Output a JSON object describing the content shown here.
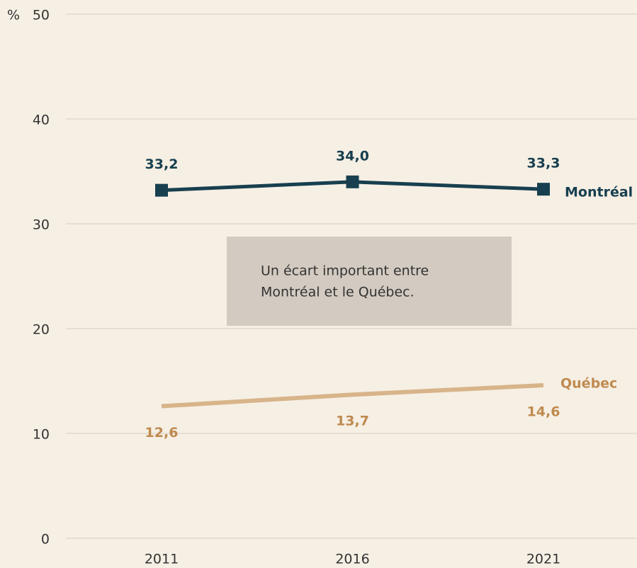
{
  "chart_data": {
    "type": "line",
    "y_unit": "%",
    "categories": [
      "2011",
      "2016",
      "2021"
    ],
    "series": [
      {
        "name": "Montréal",
        "color": "#173f4f",
        "label_color": "#173f4f",
        "marker": "square",
        "values": [
          33.2,
          34.0,
          33.3
        ],
        "value_labels": [
          "33,2",
          "34,0",
          "33,3"
        ]
      },
      {
        "name": "Québec",
        "color": "#d8b48a",
        "label_color": "#bf8a4f",
        "marker": "none",
        "values": [
          12.6,
          13.7,
          14.6
        ],
        "value_labels": [
          "12,6",
          "13,7",
          "14,6"
        ]
      }
    ],
    "ylim": [
      0,
      50
    ],
    "yticks": [
      0,
      10,
      20,
      30,
      40,
      50
    ],
    "grid": true,
    "annotation": [
      "Un écart important entre",
      "Montréal et le Québec."
    ]
  }
}
